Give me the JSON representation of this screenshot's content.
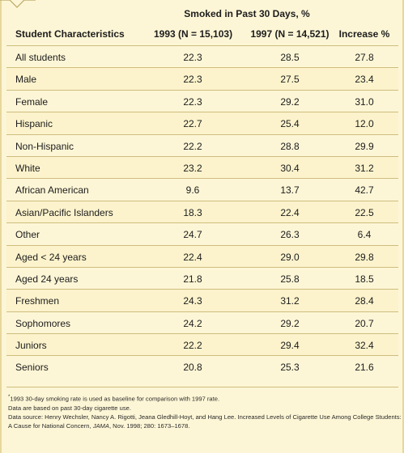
{
  "table": {
    "spanner_header": "Smoked in Past 30 Days, %",
    "columns": [
      "Student Characteristics",
      "1993 (N = 15,103)",
      "1997 (N = 14,521)",
      "Increase %"
    ],
    "rows": [
      {
        "label": "All students",
        "y1993": "22.3",
        "y1997": "28.5",
        "increase": "27.8"
      },
      {
        "label": "Male",
        "y1993": "22.3",
        "y1997": "27.5",
        "increase": "23.4"
      },
      {
        "label": "Female",
        "y1993": "22.3",
        "y1997": "29.2",
        "increase": "31.0"
      },
      {
        "label": "Hispanic",
        "y1993": "22.7",
        "y1997": "25.4",
        "increase": "12.0"
      },
      {
        "label": "Non-Hispanic",
        "y1993": "22.2",
        "y1997": "28.8",
        "increase": "29.9"
      },
      {
        "label": "White",
        "y1993": "23.2",
        "y1997": "30.4",
        "increase": "31.2"
      },
      {
        "label": "African American",
        "y1993": "9.6",
        "y1997": "13.7",
        "increase": "42.7"
      },
      {
        "label": "Asian/Pacific Islanders",
        "y1993": "18.3",
        "y1997": "22.4",
        "increase": "22.5"
      },
      {
        "label": "Other",
        "y1993": "24.7",
        "y1997": "26.3",
        "increase": "6.4"
      },
      {
        "label": "Aged < 24 years",
        "y1993": "22.4",
        "y1997": "29.0",
        "increase": "29.8"
      },
      {
        "label": "Aged  24 years",
        "y1993": "21.8",
        "y1997": "25.8",
        "increase": "18.5"
      },
      {
        "label": "Freshmen",
        "y1993": "24.3",
        "y1997": "31.2",
        "increase": "28.4"
      },
      {
        "label": "Sophomores",
        "y1993": "24.2",
        "y1997": "29.2",
        "increase": "20.7"
      },
      {
        "label": "Juniors",
        "y1993": "22.2",
        "y1997": "29.4",
        "increase": "32.4"
      },
      {
        "label": "Seniors",
        "y1993": "20.8",
        "y1997": "25.3",
        "increase": "21.6"
      }
    ]
  },
  "notes": {
    "footnote_marker": "*",
    "line1": "1993 30-day smoking rate is used as baseline for comparison with 1997 rate.",
    "line2": "Data are based on past 30-day cigarette use.",
    "line3": "Data source: Henry Wechsler, Nancy A. Rigotti, Jeana Gledhill-Hoyt, and Hang Lee. Increased Levels of Cigarette Use Among College Students:",
    "line4_prefix": "A Cause for National Concern, ",
    "line4_journal": "JAMA",
    "line4_suffix": ", Nov. 1998; 280: 1673–1678."
  },
  "colors": {
    "background": "#fdf6d6",
    "rule": "#cdbd7e",
    "frame": "#e7d79b"
  }
}
